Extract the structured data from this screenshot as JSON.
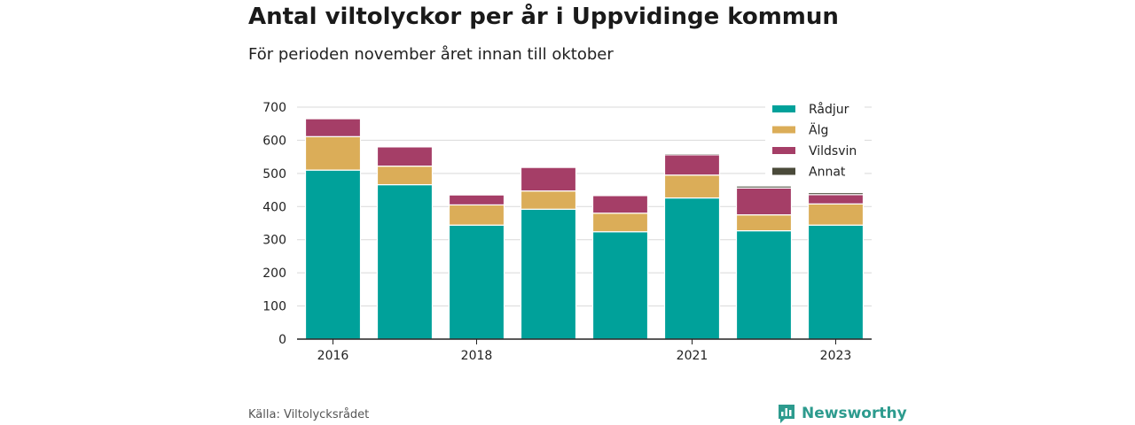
{
  "title": "Antal viltolyckor per år i Uppvidinge kommun",
  "subtitle": "För perioden november året innan till oktober",
  "source": "Källa: Viltolycksrådet",
  "brand": "Newsworthy",
  "colors": {
    "Rådjur": "#00a19a",
    "Älg": "#dbad58",
    "Vildsvin": "#a53e67",
    "Annat": "#4a4a3a",
    "brand": "#2d9b8e"
  },
  "chart_data": {
    "type": "bar",
    "stacked": true,
    "categories": [
      "2016",
      "2017",
      "2018",
      "2019",
      "2020",
      "2021",
      "2022",
      "2023"
    ],
    "x_tick_labels": [
      "2016",
      "2018",
      "2021",
      "2023"
    ],
    "series": [
      {
        "name": "Rådjur",
        "values": [
          510,
          466,
          344,
          392,
          324,
          426,
          327,
          344
        ]
      },
      {
        "name": "Älg",
        "values": [
          101,
          56,
          61,
          55,
          56,
          69,
          48,
          64
        ]
      },
      {
        "name": "Vildsvin",
        "values": [
          54,
          58,
          30,
          71,
          53,
          61,
          81,
          28
        ]
      },
      {
        "name": "Annat",
        "values": [
          0,
          0,
          0,
          0,
          0,
          4,
          6,
          6
        ]
      }
    ],
    "ylim": [
      0,
      700
    ],
    "y_ticks": [
      0,
      100,
      200,
      300,
      400,
      500,
      600,
      700
    ],
    "grid": true,
    "legend_position": "top-right"
  }
}
